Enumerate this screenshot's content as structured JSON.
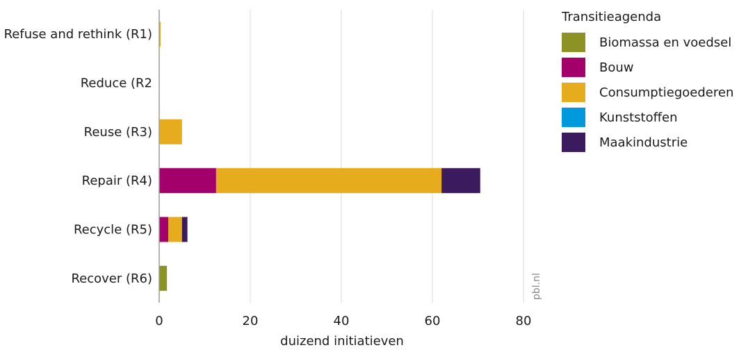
{
  "colors": {
    "Biomassa en voedsel": "#8c9223",
    "Bouw": "#a3006b",
    "Consumptiegoederen": "#e6ac1e",
    "Kunststoffen": "#0099de",
    "Maakindustrie": "#3b1b5e"
  },
  "chart_data": {
    "type": "bar",
    "orientation": "horizontal",
    "stacked": true,
    "categories": [
      "Refuse and rethink (R1)",
      "Reduce (R2",
      "Reuse (R3)",
      "Repair (R4)",
      "Recycle (R5)",
      "Recover (R6)"
    ],
    "series": [
      {
        "name": "Biomassa en voedsel",
        "values": [
          0,
          0,
          0,
          0,
          0,
          1.7
        ]
      },
      {
        "name": "Bouw",
        "values": [
          0,
          0,
          0,
          12.5,
          2.0,
          0
        ]
      },
      {
        "name": "Consumptiegoederen",
        "values": [
          0.3,
          0,
          5.0,
          49.5,
          3.0,
          0
        ]
      },
      {
        "name": "Kunststoffen",
        "values": [
          0,
          0,
          0,
          0,
          0,
          0
        ]
      },
      {
        "name": "Maakindustrie",
        "values": [
          0,
          0,
          0,
          8.5,
          1.2,
          0
        ]
      }
    ],
    "xlabel": "duizend initiatieven",
    "xlim": [
      0,
      80
    ],
    "xticks": [
      0,
      20,
      40,
      60,
      80
    ],
    "grid": "vertical",
    "legend_title": "Transitieagenda",
    "legend_position": "right",
    "credit": "pbl.nl"
  }
}
